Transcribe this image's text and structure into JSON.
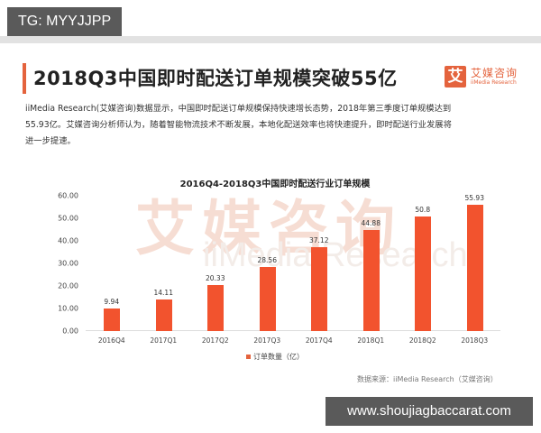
{
  "overlay": {
    "tg_label": "TG: MYYJJPP",
    "site_label": "www.shoujiagbaccarat.com"
  },
  "header": {
    "title": "2018Q3中国即时配送订单规模突破55亿",
    "logo": {
      "icon_char": "艾",
      "name_cn": "艾媒咨询",
      "name_en": "iiMedia Research"
    }
  },
  "description": {
    "lines": [
      "iiMedia Research(艾媒咨询)数据显示，中国即时配送订单规模保持快速增长态势，2018年第三季度订单规模达到",
      "55.93亿。艾媒咨询分析师认为，随着智能物流技术不断发展，本地化配送效率也将快速提升，即时配送行业发展将",
      "进一步提速。"
    ]
  },
  "watermark": {
    "cn": "艾媒咨询",
    "en": "iiMedia Research"
  },
  "colors": {
    "accent": "#e4633d",
    "bar": "#f2532e"
  },
  "chart_data": {
    "type": "bar",
    "title": "2016Q4-2018Q3中国即时配送行业订单规模",
    "categories": [
      "2016Q4",
      "2017Q1",
      "2017Q2",
      "2017Q3",
      "2017Q4",
      "2018Q1",
      "2018Q2",
      "2018Q3"
    ],
    "values": [
      9.94,
      14.11,
      20.33,
      28.56,
      37.12,
      44.88,
      50.8,
      55.93
    ],
    "value_labels": [
      "9.94",
      "14.11",
      "20.33",
      "28.56",
      "37.12",
      "44.88",
      "50.8",
      "55.93"
    ],
    "series": [
      {
        "name": "订单数量（亿）",
        "values": [
          9.94,
          14.11,
          20.33,
          28.56,
          37.12,
          44.88,
          50.8,
          55.93
        ]
      }
    ],
    "xlabel": "",
    "ylabel": "",
    "ylim": [
      0,
      60
    ],
    "y_ticks": [
      "0.00",
      "10.00",
      "20.00",
      "30.00",
      "40.00",
      "50.00",
      "60.00"
    ],
    "legend": [
      "订单数量（亿）"
    ],
    "legend_position": "bottom",
    "grid": false
  },
  "footer": {
    "source": "数据来源：iiMedia Research（艾媒咨询）"
  }
}
